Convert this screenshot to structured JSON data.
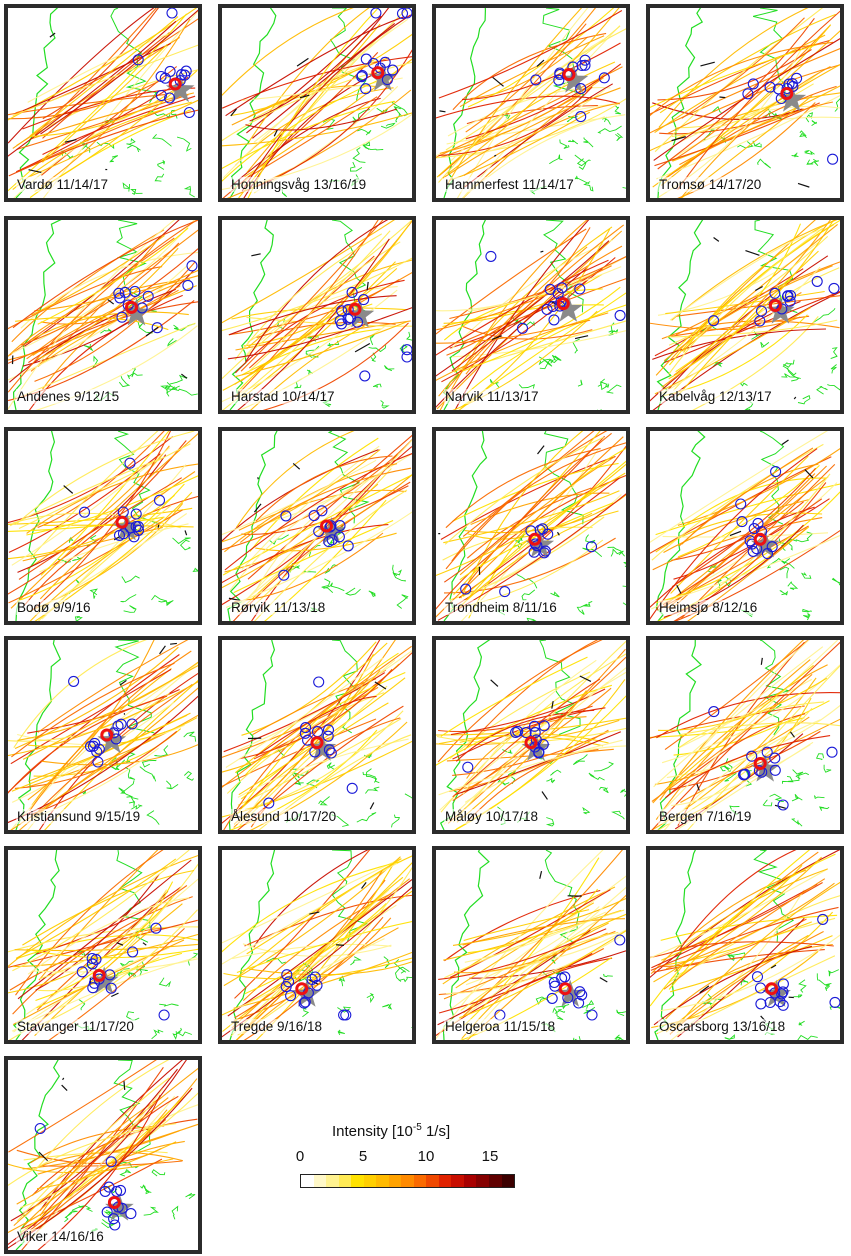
{
  "chart_data": {
    "type": "map-small-multiples",
    "panels": [
      {
        "label": "Vardø 11/14/17"
      },
      {
        "label": "Honningsvåg 13/16/19"
      },
      {
        "label": "Hammerfest 11/14/17"
      },
      {
        "label": "Tromsø 14/17/20"
      },
      {
        "label": "Andenes 9/12/15"
      },
      {
        "label": "Harstad 10/14/17"
      },
      {
        "label": "Narvik 11/13/17"
      },
      {
        "label": "Kabelvåg 12/13/17"
      },
      {
        "label": "Bodø 9/9/16"
      },
      {
        "label": "Rørvik 11/13/18"
      },
      {
        "label": "Trondheim 8/11/16"
      },
      {
        "label": "Heimsjø 8/12/16"
      },
      {
        "label": "Kristiansund 9/15/19"
      },
      {
        "label": "Ålesund 10/17/20"
      },
      {
        "label": "Måløy 10/17/18"
      },
      {
        "label": "Bergen 7/16/19"
      },
      {
        "label": "Stavanger 11/17/20"
      },
      {
        "label": "Tregde 9/16/18"
      },
      {
        "label": "Helgeroa 11/15/18"
      },
      {
        "label": "Oscarsborg 13/16/18"
      },
      {
        "label": "Viker 14/16/16"
      }
    ],
    "colorbar": {
      "title": "Intensity [10",
      "title_exponent": "-5",
      "title_unit": "1/s]",
      "ticks": [
        "0",
        "5",
        "10",
        "15"
      ],
      "range": [
        0,
        17
      ]
    },
    "colors": {
      "coastline": "#22dd22",
      "station_circle": "#1a1ad8",
      "station_marker": "#ee1111",
      "star": "#8a8a8a",
      "border": "#2b2b2b"
    },
    "palette": [
      "#ffffff",
      "#fff8c8",
      "#fff290",
      "#ffea55",
      "#ffe200",
      "#ffcf00",
      "#ffba00",
      "#ffa200",
      "#ff8a00",
      "#fa6a00",
      "#ef4800",
      "#e02200",
      "#c80e00",
      "#a80000",
      "#850000",
      "#600000",
      "#3c0000"
    ]
  }
}
